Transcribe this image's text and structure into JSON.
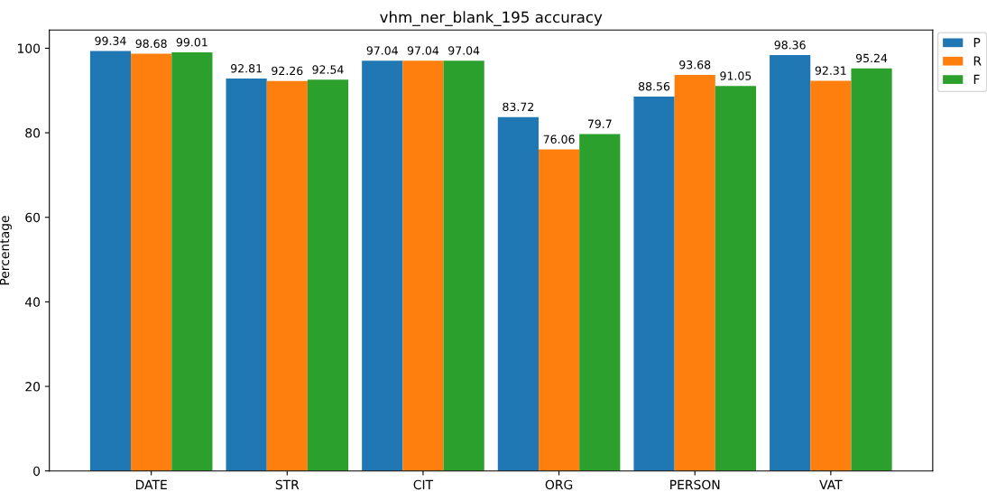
{
  "chart_data": {
    "type": "bar",
    "title": "vhm_ner_blank_195 accuracy",
    "ylabel": "Percentage",
    "categories": [
      "DATE",
      "STR",
      "CIT",
      "ORG",
      "PERSON",
      "VAT"
    ],
    "series": [
      {
        "name": "P",
        "color": "#1f77b4",
        "values": [
          99.34,
          92.81,
          97.04,
          83.72,
          88.56,
          98.36
        ]
      },
      {
        "name": "R",
        "color": "#ff7f0e",
        "values": [
          98.68,
          92.26,
          97.04,
          76.06,
          93.68,
          92.31
        ]
      },
      {
        "name": "F",
        "color": "#2ca02c",
        "values": [
          99.01,
          92.54,
          97.04,
          79.7,
          91.05,
          95.24
        ]
      }
    ],
    "ylim": [
      0,
      104.3
    ],
    "yticks": [
      0,
      20,
      40,
      60,
      80,
      100
    ],
    "data_labels": true,
    "legend": "top right",
    "grid": false
  }
}
